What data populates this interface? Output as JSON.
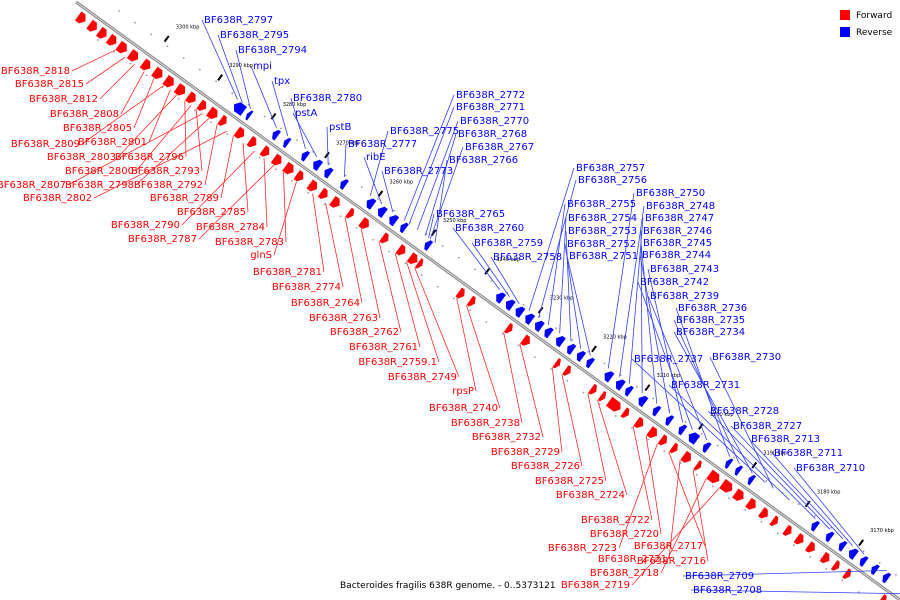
{
  "caption": "Bacteroides fragilis 638R genome. - 0..5373121",
  "legend": [
    {
      "label": "Forward",
      "color": "#ff0000"
    },
    {
      "label": "Reverse",
      "color": "#0000ff"
    }
  ],
  "colors": {
    "forward": "#ff0000",
    "reverse": "#0000ff",
    "backbone": "#888888",
    "leader_forward": "#ff2a2a",
    "leader_reverse": "#3040ff"
  },
  "ticks": [
    "3300 kbp",
    "3290 kbp",
    "3280 kbp",
    "3270 kbp",
    "3260 kbp",
    "3250 kbp",
    "3240 kbp",
    "3230 kbp",
    "3220 kbp",
    "3210 kbp",
    "3200 kbp",
    "3190 kbp",
    "3180 kbp",
    "3170 kbp"
  ],
  "reverse_genes": [
    "BF638R_2797",
    "BF638R_2795",
    "BF638R_2794",
    "mpi",
    "tpx",
    "BF638R_2780",
    "pstA",
    "pstB",
    "BF638R_2777",
    "BF638R_2775",
    "ribE",
    "BF638R_2773",
    "BF638R_2772",
    "BF638R_2771",
    "BF638R_2770",
    "BF638R_2768",
    "BF638R_2767",
    "BF638R_2766",
    "BF638R_2765",
    "BF638R_2760",
    "BF638R_2759",
    "BF638R_2758",
    "BF638R_2757",
    "BF638R_2756",
    "BF638R_2755",
    "BF638R_2754",
    "BF638R_2753",
    "BF638R_2752",
    "BF638R_2751",
    "BF638R_2750",
    "BF638R_2748",
    "BF638R_2747",
    "BF638R_2746",
    "BF638R_2745",
    "BF638R_2744",
    "BF638R_2743",
    "BF638R_2742",
    "BF638R_2739",
    "BF638R_2736",
    "BF638R_2735",
    "BF638R_2734",
    "BF638R_2737",
    "BF638R_2730",
    "BF638R_2731",
    "BF638R_2728",
    "BF638R_2727",
    "BF638R_2713",
    "BF638R_2711",
    "BF638R_2710",
    "BF638R_2709",
    "BF638R_2708"
  ],
  "forward_genes": [
    "BF638R_2818",
    "BF638R_2815",
    "BF638R_2812",
    "BF638R_2808",
    "BF638R_2805",
    "BF638R_2809",
    "BF638R_2801",
    "BF638R_2803",
    "BF638R_2796",
    "BF638R_2800",
    "BF638R_2793",
    "BF638R_2807",
    "BF638R_2798",
    "BF638R_2792",
    "BF638R_2802",
    "BF638R_2789",
    "BF638R_2785",
    "BF638R_2790",
    "BF638R_2784",
    "BF638R_2787",
    "BF638R_2783",
    "glnS",
    "BF638R_2781",
    "BF638R_2774",
    "BF638R_2764",
    "BF638R_2763",
    "BF638R_2762",
    "BF638R_2761",
    "BF638R_2759.1",
    "BF638R_2749",
    "rpsP",
    "BF638R_2740",
    "BF638R_2738",
    "BF638R_2732",
    "BF638R_2729",
    "BF638R_2726",
    "BF638R_2725",
    "BF638R_2724",
    "BF638R_2722",
    "BF638R_2720",
    "BF638R_2723",
    "BF638R_2717",
    "BF638R_2721",
    "BF638R_2716",
    "BF638R_2718",
    "BF638R_2719"
  ]
}
